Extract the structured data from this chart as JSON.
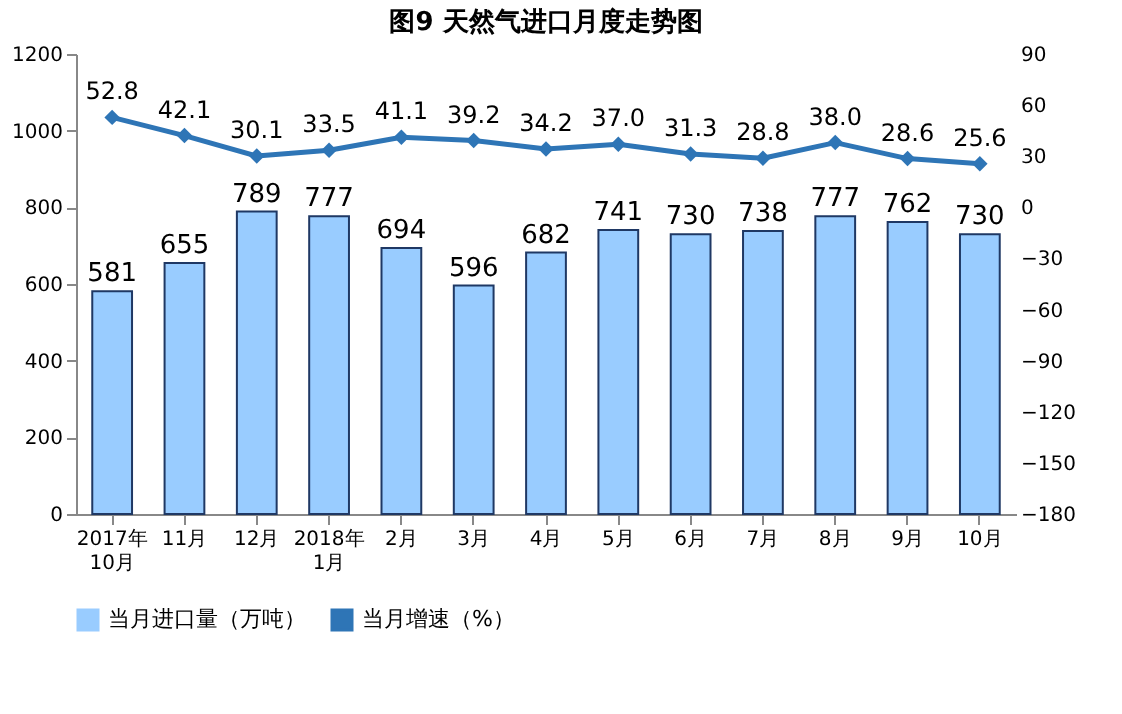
{
  "chart_data": {
    "type": "bar",
    "title": "图9  天然气进口月度走势图",
    "categories": [
      "2017年\n10月",
      "11月",
      "12月",
      "2018年\n1月",
      "2月",
      "3月",
      "4月",
      "5月",
      "6月",
      "7月",
      "8月",
      "9月",
      "10月"
    ],
    "series": [
      {
        "name": "当月进口量（万吨）",
        "color": "#99ccff",
        "values": [
          581,
          655,
          789,
          777,
          694,
          596,
          682,
          741,
          730,
          738,
          777,
          762,
          730
        ]
      },
      {
        "name": "当月增速（%）",
        "type": "line",
        "axis": "y2",
        "color": "#2e75b6",
        "marker": "diamond",
        "values": [
          52.8,
          42.1,
          30.1,
          33.5,
          41.1,
          39.2,
          34.2,
          37.0,
          31.3,
          28.8,
          38.0,
          28.6,
          25.6
        ],
        "value_labels": [
          "52.8",
          "42.1",
          "30.1",
          "33.5",
          "41.1",
          "39.2",
          "34.2",
          "37.0",
          "31.3",
          "28.8",
          "38.0",
          "28.6",
          "25.6"
        ]
      }
    ],
    "ylim": [
      0,
      1200
    ],
    "yticks": [
      0,
      200,
      400,
      600,
      800,
      1000,
      1200
    ],
    "y2lim": [
      -180,
      90
    ],
    "y2ticks": [
      -180,
      -150,
      -120,
      -90,
      -60,
      -30,
      0,
      30,
      60,
      90
    ],
    "data_labels": true,
    "grid": false,
    "legend": "bottom"
  }
}
